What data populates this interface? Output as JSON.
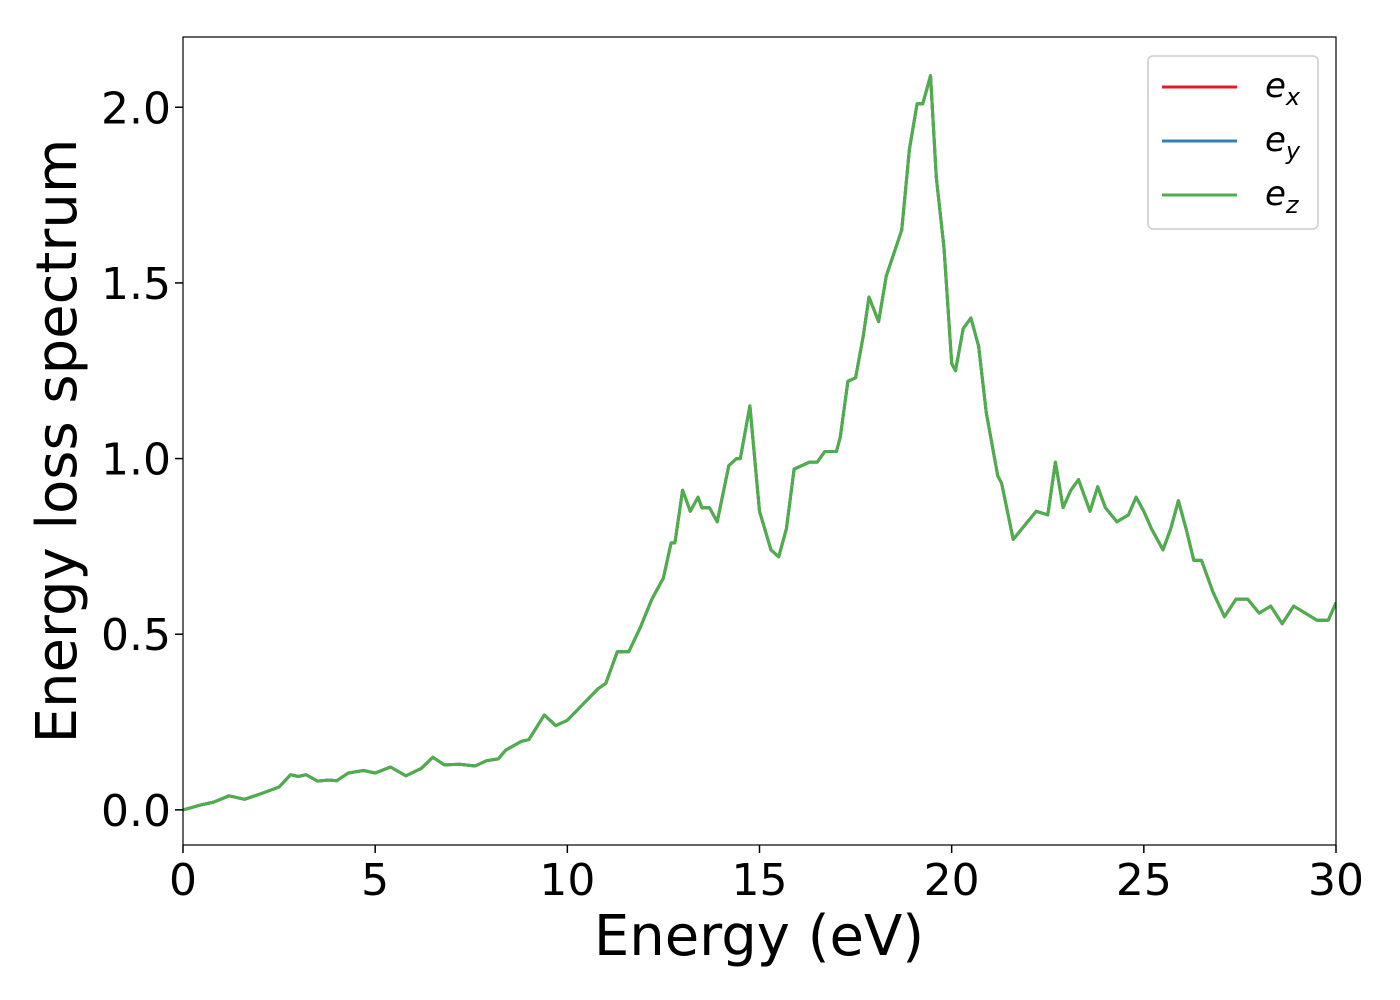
{
  "chart_data": {
    "type": "line",
    "xlabel": "Energy (eV)",
    "ylabel": "Energy loss spectrum",
    "x": [
      0,
      0.5,
      0.8,
      1.2,
      1.6,
      2.0,
      2.5,
      2.8,
      3.0,
      3.2,
      3.5,
      3.8,
      4.0,
      4.3,
      4.7,
      5.0,
      5.4,
      5.8,
      6.2,
      6.5,
      6.8,
      7.2,
      7.6,
      7.9,
      8.2,
      8.4,
      8.8,
      9.0,
      9.4,
      9.7,
      10.0,
      10.4,
      10.8,
      11.0,
      11.3,
      11.6,
      11.9,
      12.2,
      12.5,
      12.7,
      12.8,
      13.0,
      13.2,
      13.4,
      13.5,
      13.7,
      13.9,
      14.2,
      14.4,
      14.5,
      14.75,
      15.0,
      15.3,
      15.5,
      15.7,
      15.9,
      16.1,
      16.3,
      16.5,
      16.7,
      17.0,
      17.1,
      17.3,
      17.5,
      17.7,
      17.85,
      18.1,
      18.3,
      18.7,
      18.9,
      19.1,
      19.25,
      19.45,
      19.6,
      19.8,
      20.0,
      20.1,
      20.3,
      20.5,
      20.7,
      20.9,
      21.2,
      21.3,
      21.6,
      21.9,
      22.2,
      22.5,
      22.7,
      22.9,
      23.1,
      23.3,
      23.6,
      23.8,
      24.0,
      24.3,
      24.6,
      24.8,
      25.0,
      25.2,
      25.5,
      25.7,
      25.9,
      26.1,
      26.3,
      26.5,
      26.8,
      27.1,
      27.4,
      27.7,
      28.0,
      28.3,
      28.6,
      28.9,
      29.2,
      29.5,
      29.8,
      30.0
    ],
    "series": [
      {
        "name": "ex",
        "color": "#e41a1c",
        "values": [
          0.0,
          0.015,
          0.022,
          0.04,
          0.03,
          0.045,
          0.065,
          0.1,
          0.095,
          0.1,
          0.082,
          0.085,
          0.083,
          0.105,
          0.112,
          0.105,
          0.122,
          0.097,
          0.118,
          0.15,
          0.128,
          0.13,
          0.125,
          0.14,
          0.145,
          0.17,
          0.195,
          0.2,
          0.27,
          0.24,
          0.255,
          0.3,
          0.345,
          0.36,
          0.45,
          0.45,
          0.52,
          0.6,
          0.66,
          0.76,
          0.76,
          0.91,
          0.85,
          0.89,
          0.86,
          0.86,
          0.82,
          0.98,
          1.0,
          1.0,
          1.15,
          0.85,
          0.74,
          0.72,
          0.8,
          0.97,
          0.98,
          0.99,
          0.99,
          1.02,
          1.02,
          1.06,
          1.22,
          1.23,
          1.35,
          1.46,
          1.39,
          1.52,
          1.65,
          1.88,
          2.01,
          2.01,
          2.09,
          1.8,
          1.6,
          1.27,
          1.25,
          1.37,
          1.4,
          1.32,
          1.13,
          0.95,
          0.93,
          0.77,
          0.81,
          0.85,
          0.84,
          0.99,
          0.86,
          0.91,
          0.94,
          0.85,
          0.92,
          0.86,
          0.82,
          0.84,
          0.89,
          0.85,
          0.8,
          0.74,
          0.8,
          0.88,
          0.8,
          0.71,
          0.71,
          0.62,
          0.55,
          0.6,
          0.6,
          0.56,
          0.58,
          0.53,
          0.58,
          0.56,
          0.54,
          0.54,
          0.59
        ]
      },
      {
        "name": "ey",
        "color": "#377eb8",
        "values": [
          0.0,
          0.015,
          0.022,
          0.04,
          0.03,
          0.045,
          0.065,
          0.1,
          0.095,
          0.1,
          0.082,
          0.085,
          0.083,
          0.105,
          0.112,
          0.105,
          0.122,
          0.097,
          0.118,
          0.15,
          0.128,
          0.13,
          0.125,
          0.14,
          0.145,
          0.17,
          0.195,
          0.2,
          0.27,
          0.24,
          0.255,
          0.3,
          0.345,
          0.36,
          0.45,
          0.45,
          0.52,
          0.6,
          0.66,
          0.76,
          0.76,
          0.91,
          0.85,
          0.89,
          0.86,
          0.86,
          0.82,
          0.98,
          1.0,
          1.0,
          1.15,
          0.85,
          0.74,
          0.72,
          0.8,
          0.97,
          0.98,
          0.99,
          0.99,
          1.02,
          1.02,
          1.06,
          1.22,
          1.23,
          1.35,
          1.46,
          1.39,
          1.52,
          1.65,
          1.88,
          2.01,
          2.01,
          2.09,
          1.8,
          1.6,
          1.27,
          1.25,
          1.37,
          1.4,
          1.32,
          1.13,
          0.95,
          0.93,
          0.77,
          0.81,
          0.85,
          0.84,
          0.99,
          0.86,
          0.91,
          0.94,
          0.85,
          0.92,
          0.86,
          0.82,
          0.84,
          0.89,
          0.85,
          0.8,
          0.74,
          0.8,
          0.88,
          0.8,
          0.71,
          0.71,
          0.62,
          0.55,
          0.6,
          0.6,
          0.56,
          0.58,
          0.53,
          0.58,
          0.56,
          0.54,
          0.54,
          0.59
        ]
      },
      {
        "name": "ez",
        "color": "#4daf4a",
        "values": [
          0.0,
          0.015,
          0.022,
          0.04,
          0.03,
          0.045,
          0.065,
          0.1,
          0.095,
          0.1,
          0.082,
          0.085,
          0.083,
          0.105,
          0.112,
          0.105,
          0.122,
          0.097,
          0.118,
          0.15,
          0.128,
          0.13,
          0.125,
          0.14,
          0.145,
          0.17,
          0.195,
          0.2,
          0.27,
          0.24,
          0.255,
          0.3,
          0.345,
          0.36,
          0.45,
          0.45,
          0.52,
          0.6,
          0.66,
          0.76,
          0.76,
          0.91,
          0.85,
          0.89,
          0.86,
          0.86,
          0.82,
          0.98,
          1.0,
          1.0,
          1.15,
          0.85,
          0.74,
          0.72,
          0.8,
          0.97,
          0.98,
          0.99,
          0.99,
          1.02,
          1.02,
          1.06,
          1.22,
          1.23,
          1.35,
          1.46,
          1.39,
          1.52,
          1.65,
          1.88,
          2.01,
          2.01,
          2.09,
          1.8,
          1.6,
          1.27,
          1.25,
          1.37,
          1.4,
          1.32,
          1.13,
          0.95,
          0.93,
          0.77,
          0.81,
          0.85,
          0.84,
          0.99,
          0.86,
          0.91,
          0.94,
          0.85,
          0.92,
          0.86,
          0.82,
          0.84,
          0.89,
          0.85,
          0.8,
          0.74,
          0.8,
          0.88,
          0.8,
          0.71,
          0.71,
          0.62,
          0.55,
          0.6,
          0.6,
          0.56,
          0.58,
          0.53,
          0.58,
          0.56,
          0.54,
          0.54,
          0.59
        ]
      }
    ],
    "xlim": [
      0,
      30
    ],
    "xticks": [
      0,
      5,
      10,
      15,
      20,
      25,
      30
    ],
    "ylim": [
      -0.1,
      2.2
    ],
    "yticks": [
      {
        "value": 0,
        "label": "0.0"
      },
      0.5,
      {
        "value": 1,
        "label": "1.0"
      },
      1.5,
      {
        "value": 2,
        "label": "2.0"
      }
    ],
    "legend": "upper right"
  }
}
